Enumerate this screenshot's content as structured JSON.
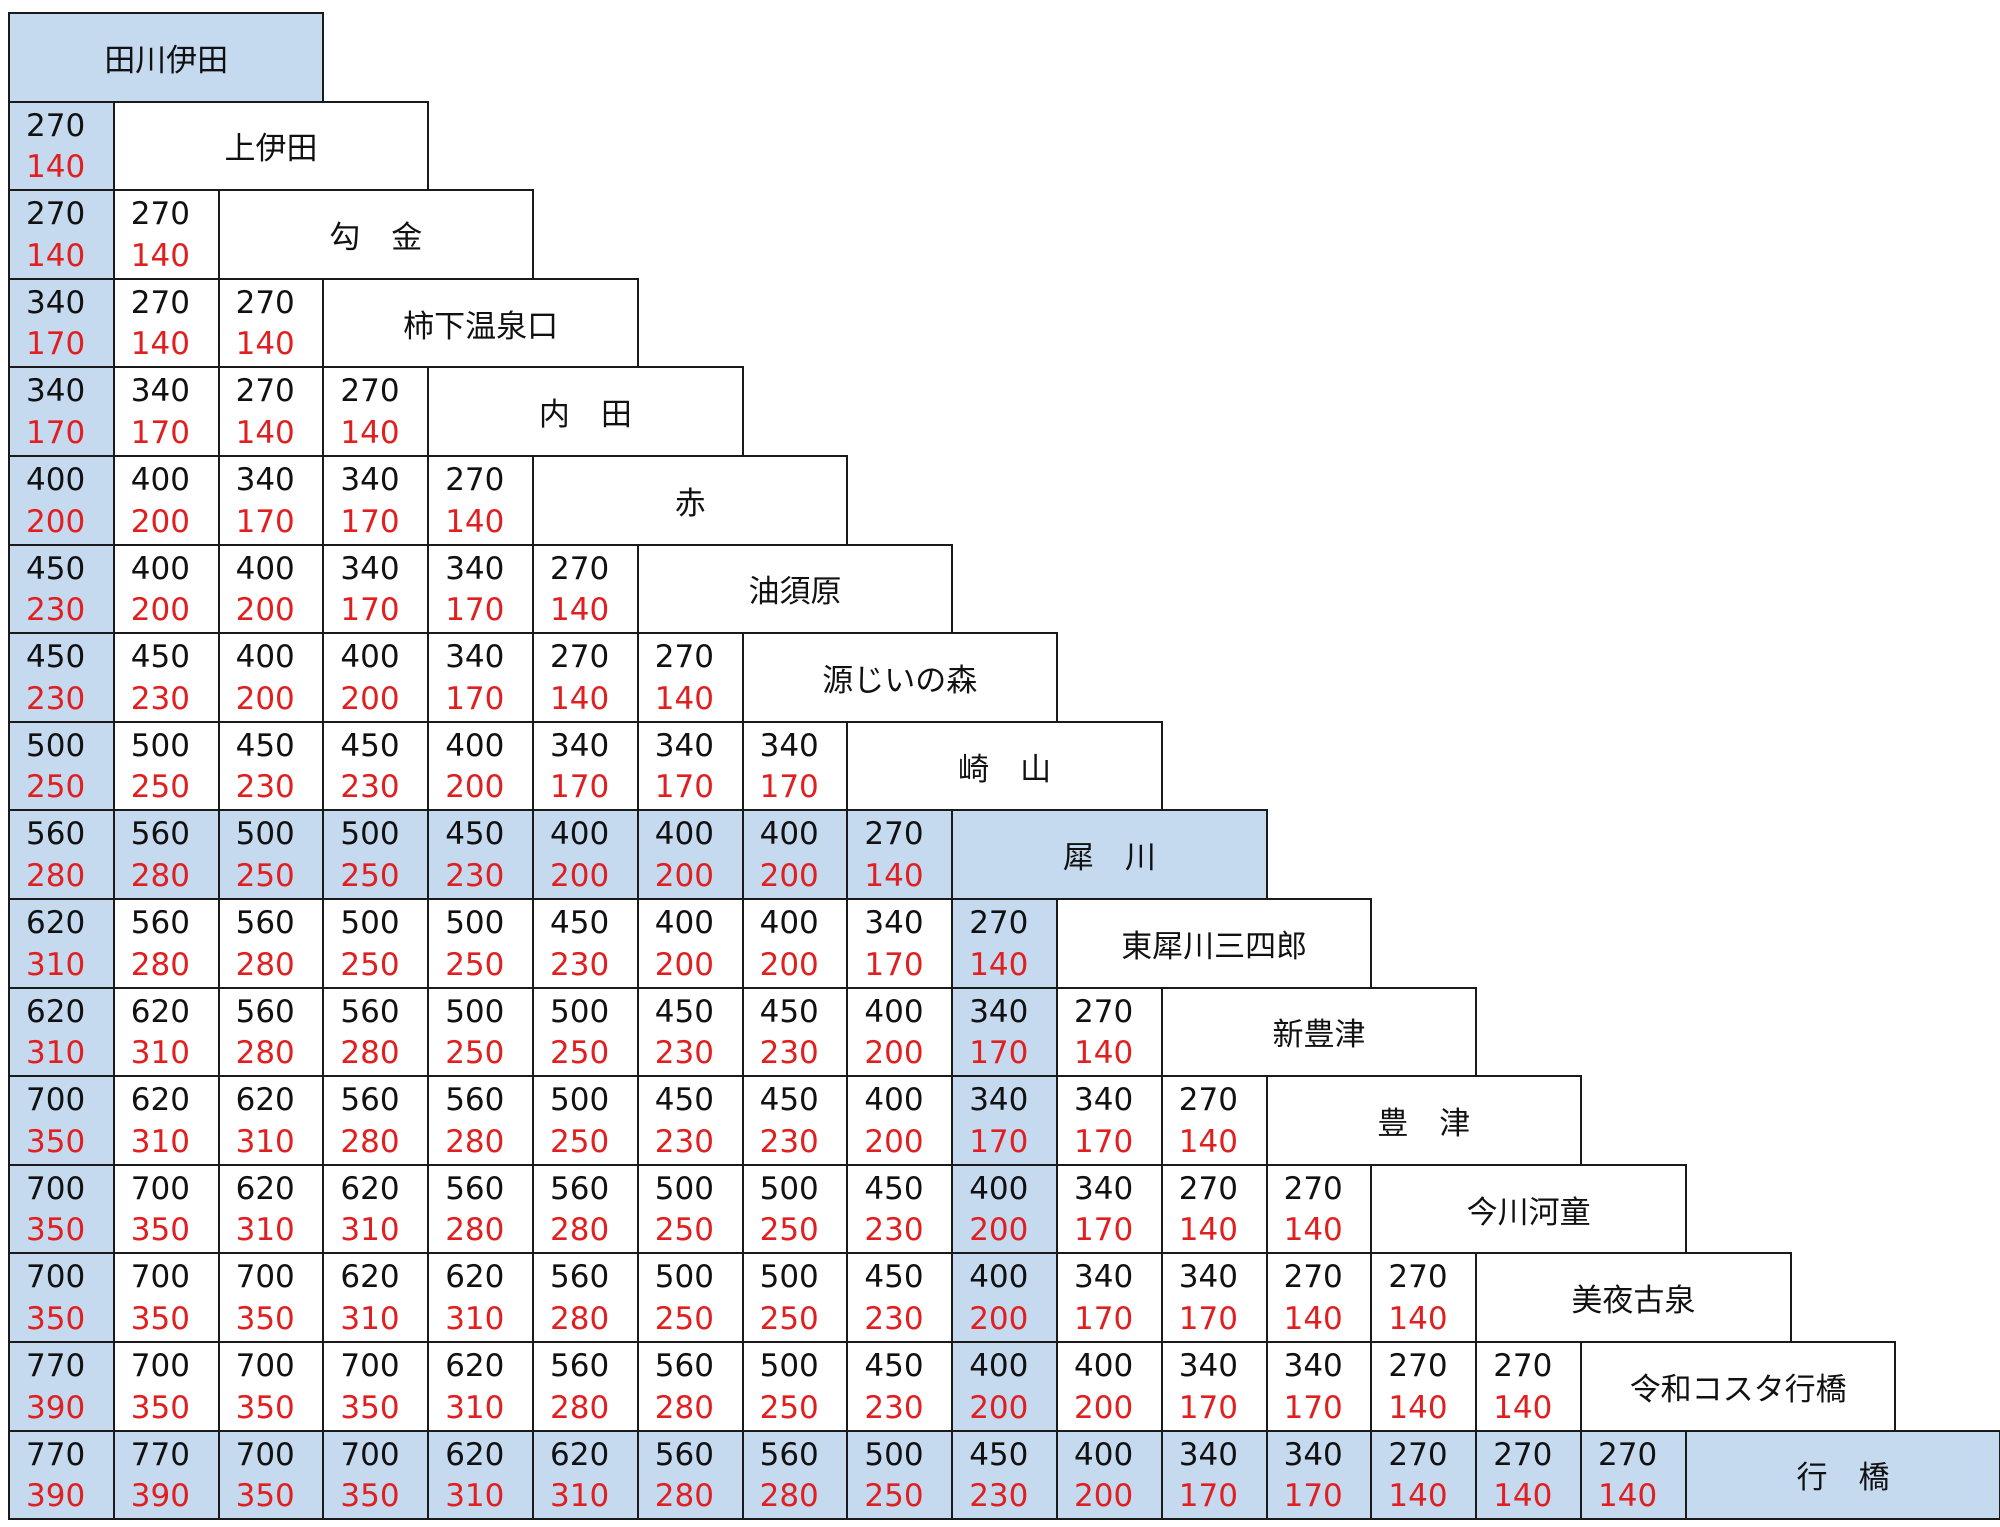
{
  "stations": [
    {
      "name": "田川伊田",
      "highlight": true
    },
    {
      "name": "上伊田",
      "highlight": false
    },
    {
      "name": "勾　金",
      "highlight": false
    },
    {
      "name": "柿下温泉口",
      "highlight": false
    },
    {
      "name": "内　田",
      "highlight": false
    },
    {
      "name": "赤",
      "highlight": false
    },
    {
      "name": "油須原",
      "highlight": false
    },
    {
      "name": "源じいの森",
      "highlight": false
    },
    {
      "name": "崎　山",
      "highlight": false
    },
    {
      "name": "犀　川",
      "highlight": true
    },
    {
      "name": "東犀川三四郎",
      "highlight": false
    },
    {
      "name": "新豊津",
      "highlight": false
    },
    {
      "name": "豊　津",
      "highlight": false
    },
    {
      "name": "今川河童",
      "highlight": false
    },
    {
      "name": "美夜古泉",
      "highlight": false
    },
    {
      "name": "令和コスタ行橋",
      "highlight": false
    },
    {
      "name": "行　橋",
      "highlight": true
    }
  ],
  "fares": [
    [],
    [
      {
        "adult": "270",
        "child": "140"
      }
    ],
    [
      {
        "adult": "270",
        "child": "140"
      },
      {
        "adult": "270",
        "child": "140"
      }
    ],
    [
      {
        "adult": "340",
        "child": "170"
      },
      {
        "adult": "270",
        "child": "140"
      },
      {
        "adult": "270",
        "child": "140"
      }
    ],
    [
      {
        "adult": "340",
        "child": "170"
      },
      {
        "adult": "340",
        "child": "170"
      },
      {
        "adult": "270",
        "child": "140"
      },
      {
        "adult": "270",
        "child": "140"
      }
    ],
    [
      {
        "adult": "400",
        "child": "200"
      },
      {
        "adult": "400",
        "child": "200"
      },
      {
        "adult": "340",
        "child": "170"
      },
      {
        "adult": "340",
        "child": "170"
      },
      {
        "adult": "270",
        "child": "140"
      }
    ],
    [
      {
        "adult": "450",
        "child": "230"
      },
      {
        "adult": "400",
        "child": "200"
      },
      {
        "adult": "400",
        "child": "200"
      },
      {
        "adult": "340",
        "child": "170"
      },
      {
        "adult": "340",
        "child": "170"
      },
      {
        "adult": "270",
        "child": "140"
      }
    ],
    [
      {
        "adult": "450",
        "child": "230"
      },
      {
        "adult": "450",
        "child": "230"
      },
      {
        "adult": "400",
        "child": "200"
      },
      {
        "adult": "400",
        "child": "200"
      },
      {
        "adult": "340",
        "child": "170"
      },
      {
        "adult": "270",
        "child": "140"
      },
      {
        "adult": "270",
        "child": "140"
      }
    ],
    [
      {
        "adult": "500",
        "child": "250"
      },
      {
        "adult": "500",
        "child": "250"
      },
      {
        "adult": "450",
        "child": "230"
      },
      {
        "adult": "450",
        "child": "230"
      },
      {
        "adult": "400",
        "child": "200"
      },
      {
        "adult": "340",
        "child": "170"
      },
      {
        "adult": "340",
        "child": "170"
      },
      {
        "adult": "340",
        "child": "170"
      }
    ],
    [
      {
        "adult": "560",
        "child": "280"
      },
      {
        "adult": "560",
        "child": "280"
      },
      {
        "adult": "500",
        "child": "250"
      },
      {
        "adult": "500",
        "child": "250"
      },
      {
        "adult": "450",
        "child": "230"
      },
      {
        "adult": "400",
        "child": "200"
      },
      {
        "adult": "400",
        "child": "200"
      },
      {
        "adult": "400",
        "child": "200"
      },
      {
        "adult": "270",
        "child": "140"
      }
    ],
    [
      {
        "adult": "620",
        "child": "310"
      },
      {
        "adult": "560",
        "child": "280"
      },
      {
        "adult": "560",
        "child": "280"
      },
      {
        "adult": "500",
        "child": "250"
      },
      {
        "adult": "500",
        "child": "250"
      },
      {
        "adult": "450",
        "child": "230"
      },
      {
        "adult": "400",
        "child": "200"
      },
      {
        "adult": "400",
        "child": "200"
      },
      {
        "adult": "340",
        "child": "170"
      },
      {
        "adult": "270",
        "child": "140"
      }
    ],
    [
      {
        "adult": "620",
        "child": "310"
      },
      {
        "adult": "620",
        "child": "310"
      },
      {
        "adult": "560",
        "child": "280"
      },
      {
        "adult": "560",
        "child": "280"
      },
      {
        "adult": "500",
        "child": "250"
      },
      {
        "adult": "500",
        "child": "250"
      },
      {
        "adult": "450",
        "child": "230"
      },
      {
        "adult": "450",
        "child": "230"
      },
      {
        "adult": "400",
        "child": "200"
      },
      {
        "adult": "340",
        "child": "170"
      },
      {
        "adult": "270",
        "child": "140"
      }
    ],
    [
      {
        "adult": "700",
        "child": "350"
      },
      {
        "adult": "620",
        "child": "310"
      },
      {
        "adult": "620",
        "child": "310"
      },
      {
        "adult": "560",
        "child": "280"
      },
      {
        "adult": "560",
        "child": "280"
      },
      {
        "adult": "500",
        "child": "250"
      },
      {
        "adult": "450",
        "child": "230"
      },
      {
        "adult": "450",
        "child": "230"
      },
      {
        "adult": "400",
        "child": "200"
      },
      {
        "adult": "340",
        "child": "170"
      },
      {
        "adult": "340",
        "child": "170"
      },
      {
        "adult": "270",
        "child": "140"
      }
    ],
    [
      {
        "adult": "700",
        "child": "350"
      },
      {
        "adult": "700",
        "child": "350"
      },
      {
        "adult": "620",
        "child": "310"
      },
      {
        "adult": "620",
        "child": "310"
      },
      {
        "adult": "560",
        "child": "280"
      },
      {
        "adult": "560",
        "child": "280"
      },
      {
        "adult": "500",
        "child": "250"
      },
      {
        "adult": "500",
        "child": "250"
      },
      {
        "adult": "450",
        "child": "230"
      },
      {
        "adult": "400",
        "child": "200"
      },
      {
        "adult": "340",
        "child": "170"
      },
      {
        "adult": "270",
        "child": "140"
      },
      {
        "adult": "270",
        "child": "140"
      }
    ],
    [
      {
        "adult": "700",
        "child": "350"
      },
      {
        "adult": "700",
        "child": "350"
      },
      {
        "adult": "700",
        "child": "350"
      },
      {
        "adult": "620",
        "child": "310"
      },
      {
        "adult": "620",
        "child": "310"
      },
      {
        "adult": "560",
        "child": "280"
      },
      {
        "adult": "500",
        "child": "250"
      },
      {
        "adult": "500",
        "child": "250"
      },
      {
        "adult": "450",
        "child": "230"
      },
      {
        "adult": "400",
        "child": "200"
      },
      {
        "adult": "340",
        "child": "170"
      },
      {
        "adult": "340",
        "child": "170"
      },
      {
        "adult": "270",
        "child": "140"
      },
      {
        "adult": "270",
        "child": "140"
      }
    ],
    [
      {
        "adult": "770",
        "child": "390"
      },
      {
        "adult": "700",
        "child": "350"
      },
      {
        "adult": "700",
        "child": "350"
      },
      {
        "adult": "700",
        "child": "350"
      },
      {
        "adult": "620",
        "child": "310"
      },
      {
        "adult": "560",
        "child": "280"
      },
      {
        "adult": "560",
        "child": "280"
      },
      {
        "adult": "500",
        "child": "250"
      },
      {
        "adult": "450",
        "child": "230"
      },
      {
        "adult": "400",
        "child": "200"
      },
      {
        "adult": "400",
        "child": "200"
      },
      {
        "adult": "340",
        "child": "170"
      },
      {
        "adult": "340",
        "child": "170"
      },
      {
        "adult": "270",
        "child": "140"
      },
      {
        "adult": "270",
        "child": "140"
      }
    ],
    [
      {
        "adult": "770",
        "child": "390"
      },
      {
        "adult": "770",
        "child": "390"
      },
      {
        "adult": "700",
        "child": "350"
      },
      {
        "adult": "700",
        "child": "350"
      },
      {
        "adult": "620",
        "child": "310"
      },
      {
        "adult": "620",
        "child": "310"
      },
      {
        "adult": "560",
        "child": "280"
      },
      {
        "adult": "560",
        "child": "280"
      },
      {
        "adult": "500",
        "child": "250"
      },
      {
        "adult": "450",
        "child": "230"
      },
      {
        "adult": "400",
        "child": "200"
      },
      {
        "adult": "340",
        "child": "170"
      },
      {
        "adult": "340",
        "child": "170"
      },
      {
        "adult": "270",
        "child": "140"
      },
      {
        "adult": "270",
        "child": "140"
      },
      {
        "adult": "270",
        "child": "140"
      }
    ]
  ],
  "colors": {
    "highlight_fill": "#c5d9ef",
    "adult_text": "#111111",
    "child_text": "#e02020",
    "border": "#1a1a1a"
  }
}
